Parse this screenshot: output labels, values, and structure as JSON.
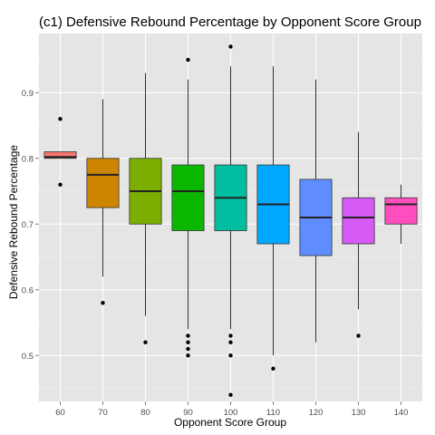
{
  "chart_data": {
    "type": "boxplot",
    "title": "(c1) Defensive Rebound Percentage by Opponent Score Group",
    "xlabel": "Opponent Score Group",
    "ylabel": "Defensive Rebound Percentage",
    "ylim": [
      0.43,
      0.99
    ],
    "yticks": [
      "0.5",
      "0.6",
      "0.7",
      "0.8",
      "0.9"
    ],
    "grid": true,
    "legend": "none",
    "categories": [
      "60",
      "70",
      "80",
      "90",
      "100",
      "110",
      "120",
      "130",
      "140"
    ],
    "boxes": [
      {
        "category": "60",
        "color": "#F8766D",
        "min": 0.8,
        "q1": 0.8,
        "median": 0.802,
        "q3": 0.81,
        "max": 0.81,
        "outliers": [
          0.86,
          0.76
        ]
      },
      {
        "category": "70",
        "color": "#CD8400",
        "min": 0.62,
        "q1": 0.725,
        "median": 0.775,
        "q3": 0.8,
        "max": 0.89,
        "outliers": [
          0.58
        ]
      },
      {
        "category": "80",
        "color": "#7CAE00",
        "min": 0.56,
        "q1": 0.7,
        "median": 0.75,
        "q3": 0.8,
        "max": 0.93,
        "outliers": [
          0.52
        ]
      },
      {
        "category": "90",
        "color": "#0CB702",
        "min": 0.54,
        "q1": 0.69,
        "median": 0.75,
        "q3": 0.79,
        "max": 0.92,
        "outliers": [
          0.95,
          0.53,
          0.52,
          0.51,
          0.5
        ]
      },
      {
        "category": "100",
        "color": "#00BE9F",
        "min": 0.54,
        "q1": 0.69,
        "median": 0.74,
        "q3": 0.79,
        "max": 0.94,
        "outliers": [
          0.97,
          0.53,
          0.52,
          0.5,
          0.44
        ]
      },
      {
        "category": "110",
        "color": "#00A9FF",
        "min": 0.5,
        "q1": 0.67,
        "median": 0.73,
        "q3": 0.79,
        "max": 0.94,
        "outliers": [
          0.48
        ]
      },
      {
        "category": "120",
        "color": "#5F8CFF",
        "min": 0.52,
        "q1": 0.652,
        "median": 0.71,
        "q3": 0.768,
        "max": 0.92,
        "outliers": []
      },
      {
        "category": "130",
        "color": "#D65BF6",
        "min": 0.57,
        "q1": 0.67,
        "median": 0.71,
        "q3": 0.74,
        "max": 0.84,
        "outliers": [
          0.53
        ]
      },
      {
        "category": "140",
        "color": "#FF4FBE",
        "min": 0.67,
        "q1": 0.7,
        "median": 0.73,
        "q3": 0.74,
        "max": 0.76,
        "outliers": []
      }
    ]
  }
}
